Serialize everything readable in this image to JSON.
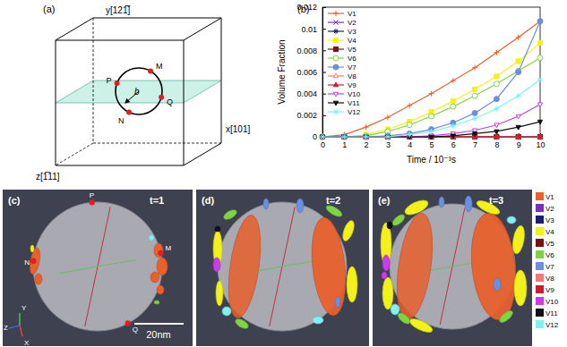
{
  "diagram": {
    "label": "(a)",
    "axes": {
      "x": "x[101]",
      "y": "y[121̅]",
      "z": "z[1̅11]"
    },
    "points": [
      "P",
      "M",
      "N",
      "Q"
    ],
    "vector": "b"
  },
  "chart_data": {
    "type": "line",
    "title": "(b)",
    "x_label": "Time / 10⁻³s",
    "y_label": "Volume Fraction",
    "x": [
      0,
      1,
      2,
      3,
      4,
      5,
      6,
      7,
      8,
      9,
      10
    ],
    "xlim": [
      0,
      10
    ],
    "xticks": [
      0,
      1,
      2,
      3,
      4,
      5,
      6,
      7,
      8,
      9,
      10
    ],
    "ylim": [
      0,
      0.012
    ],
    "yticks": [
      0,
      0.002,
      0.004,
      0.006,
      0.008,
      0.01,
      0.012
    ],
    "legend": "top-left",
    "series": [
      {
        "name": "V1",
        "color": "#e8602c",
        "marker": "plus",
        "values": [
          0,
          0.0002,
          0.0009,
          0.0018,
          0.0029,
          0.004,
          0.0052,
          0.0064,
          0.0078,
          0.0092,
          0.0107
        ]
      },
      {
        "name": "V2",
        "color": "#7a2fc0",
        "marker": "x",
        "values": [
          0,
          0,
          0,
          0,
          0,
          0,
          0,
          0,
          0,
          0,
          0
        ]
      },
      {
        "name": "V3",
        "color": "#1c1c70",
        "marker": "asterisk",
        "values": [
          0,
          0,
          0,
          0,
          0,
          0,
          0,
          0,
          0,
          0,
          0
        ]
      },
      {
        "name": "V4",
        "color": "#f2f21a",
        "marker": "square",
        "values": [
          0,
          0,
          0.0002,
          0.0007,
          0.0014,
          0.0023,
          0.0033,
          0.0044,
          0.0056,
          0.007,
          0.0087
        ]
      },
      {
        "name": "V5",
        "color": "#7a1010",
        "marker": "square",
        "values": [
          0,
          0,
          0,
          0,
          0,
          0,
          0,
          0,
          0,
          0,
          0
        ]
      },
      {
        "name": "V6",
        "color": "#7fd444",
        "marker": "circle-open",
        "values": [
          0,
          0,
          0.0001,
          0.0005,
          0.0011,
          0.0019,
          0.0028,
          0.0038,
          0.0049,
          0.0061,
          0.0073
        ]
      },
      {
        "name": "V7",
        "color": "#6b8fe0",
        "marker": "circle",
        "values": [
          0,
          0,
          0,
          0.0001,
          0.0003,
          0.0007,
          0.0013,
          0.0022,
          0.0035,
          0.006,
          0.0107
        ]
      },
      {
        "name": "V8",
        "color": "#f07a7a",
        "marker": "triangle-open",
        "values": [
          0,
          0,
          0,
          0,
          0,
          0,
          0,
          0,
          0,
          0,
          0
        ]
      },
      {
        "name": "V9",
        "color": "#c81e2e",
        "marker": "triangle",
        "values": [
          0,
          0,
          0,
          0,
          0,
          0,
          0,
          0,
          0,
          0,
          0
        ]
      },
      {
        "name": "V10",
        "color": "#c93ce8",
        "marker": "triangle-down-open",
        "values": [
          0,
          0,
          0,
          0,
          0,
          0.0001,
          0.0003,
          0.0006,
          0.0011,
          0.0019,
          0.003
        ]
      },
      {
        "name": "V11",
        "color": "#111111",
        "marker": "triangle-down",
        "values": [
          0,
          0,
          0,
          0,
          0,
          0,
          0.0001,
          0.0003,
          0.0005,
          0.0009,
          0.0014
        ]
      },
      {
        "name": "V12",
        "color": "#80f0f0",
        "marker": "asterisk",
        "values": [
          0,
          0,
          0,
          0,
          0.0002,
          0.0005,
          0.001,
          0.0017,
          0.0026,
          0.0038,
          0.0053
        ]
      }
    ]
  },
  "renders": {
    "panels": [
      {
        "label": "(c)",
        "time": "t=1"
      },
      {
        "label": "(d)",
        "time": "t=2"
      },
      {
        "label": "(e)",
        "time": "t=3"
      }
    ],
    "points": [
      "P",
      "N",
      "M",
      "Q"
    ],
    "triad": [
      "Y",
      "Z",
      "X"
    ],
    "scale_bar": "20nm"
  }
}
